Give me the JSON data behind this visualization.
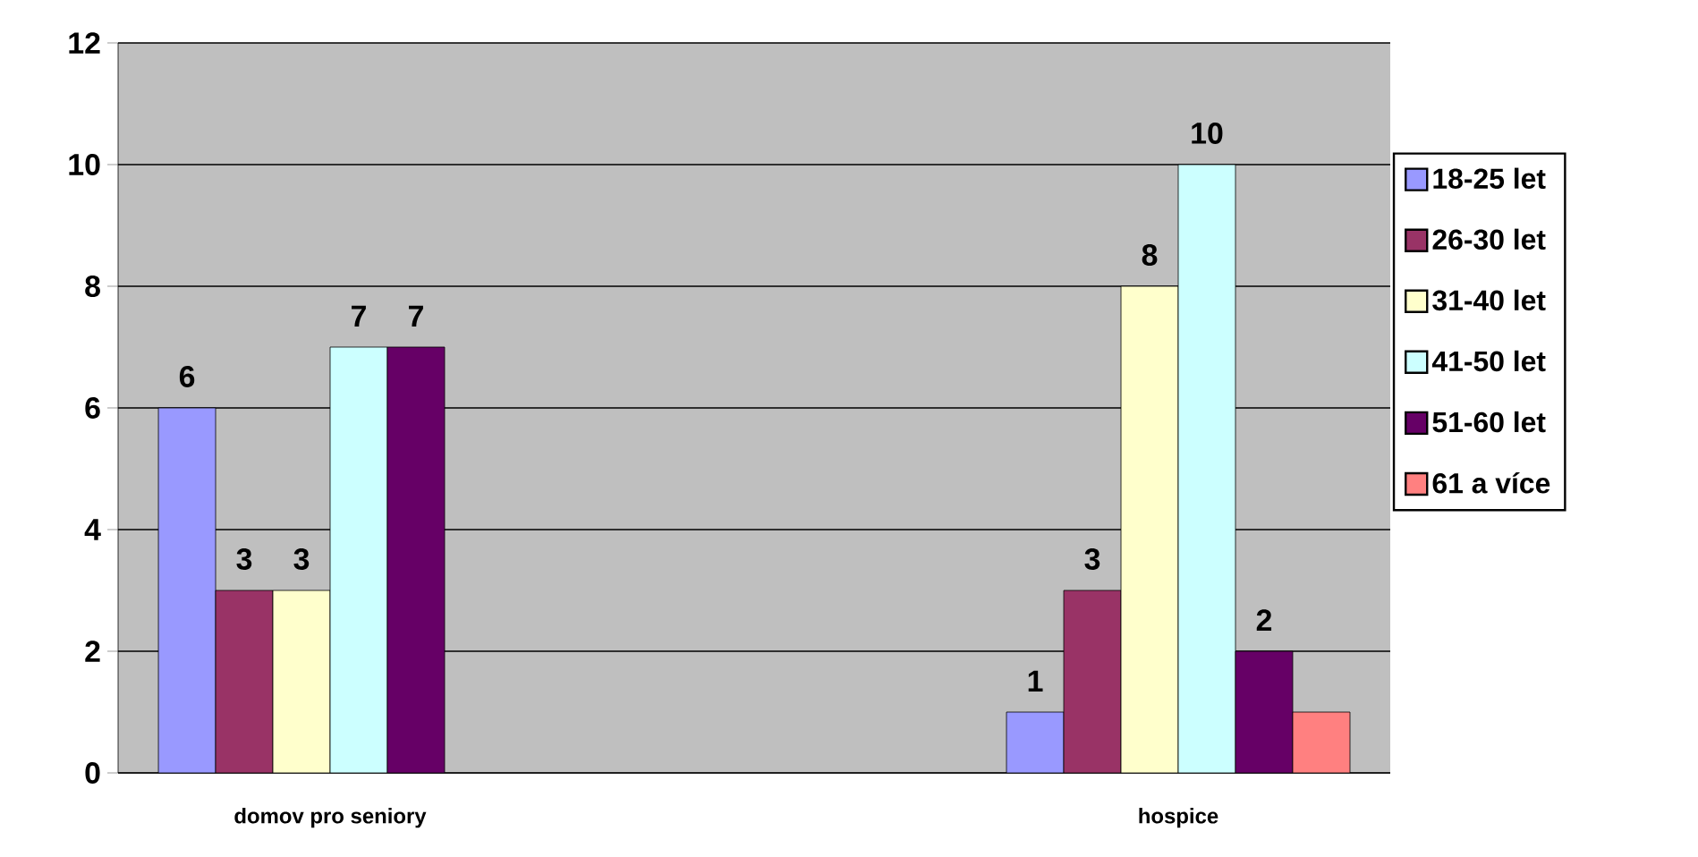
{
  "chart_data": {
    "type": "bar",
    "categories": [
      "domov pro seniory",
      null,
      "hospice"
    ],
    "series": [
      {
        "name": "18-25 let",
        "color": "#9999ff",
        "values": [
          6,
          null,
          1
        ],
        "value_labels": [
          "6",
          null,
          "1"
        ]
      },
      {
        "name": "26-30 let",
        "color": "#993366",
        "values": [
          3,
          null,
          3
        ],
        "value_labels": [
          "3",
          null,
          "3"
        ]
      },
      {
        "name": "31-40 let",
        "color": "#ffffcc",
        "values": [
          3,
          null,
          8
        ],
        "value_labels": [
          "3",
          null,
          "8"
        ]
      },
      {
        "name": "41-50 let",
        "color": "#ccffff",
        "values": [
          7,
          null,
          10
        ],
        "value_labels": [
          "7",
          null,
          "10"
        ]
      },
      {
        "name": "51-60 let",
        "color": "#660066",
        "values": [
          7,
          null,
          2
        ],
        "value_labels": [
          "7",
          null,
          "2"
        ]
      },
      {
        "name": "61 a více",
        "color": "#ff8080",
        "values": [
          null,
          null,
          1
        ],
        "value_labels": [
          null,
          null,
          null
        ]
      }
    ],
    "ylim": [
      0,
      12
    ],
    "yticks": [
      0,
      2,
      4,
      6,
      8,
      10,
      12
    ],
    "grid": "y",
    "legend": "right"
  }
}
